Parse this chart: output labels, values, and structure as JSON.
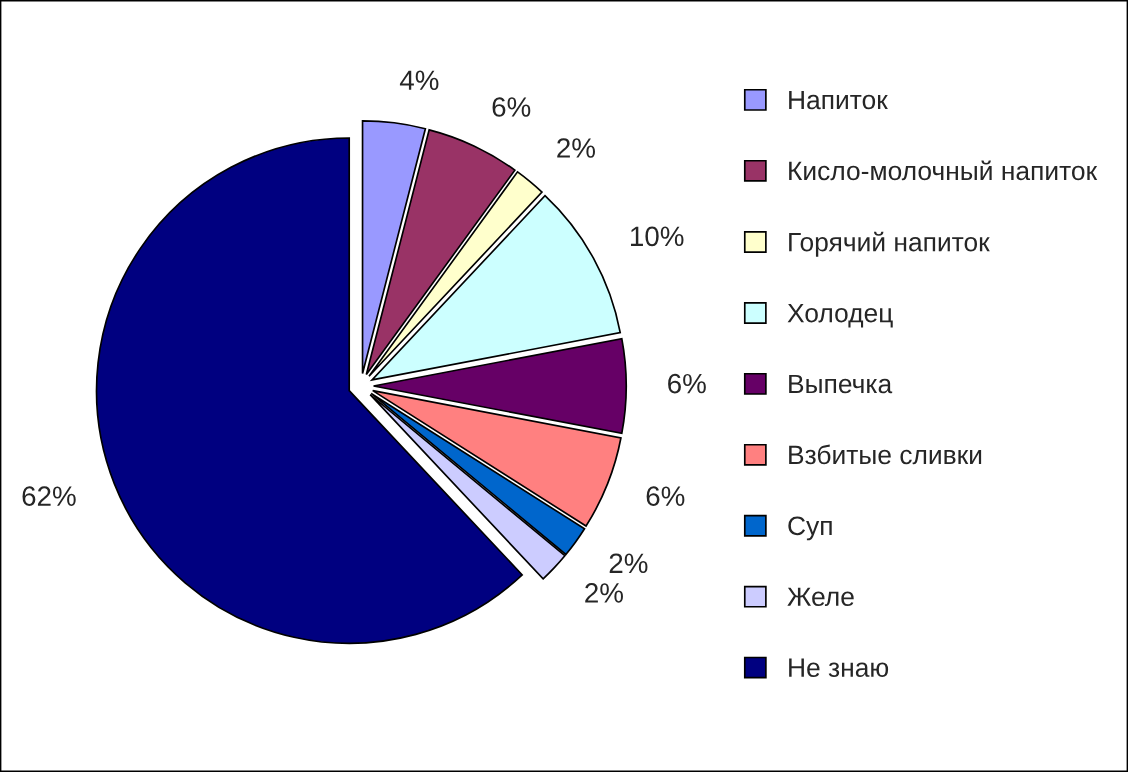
{
  "chart_data": {
    "type": "pie",
    "categories": [
      "Напиток",
      "Кисло-молочный напиток",
      "Горячий напиток",
      "Холодец",
      "Выпечка",
      "Взбитые сливки",
      "Суп",
      "Желе",
      "Не знаю"
    ],
    "values": [
      4,
      6,
      2,
      10,
      6,
      6,
      2,
      2,
      62
    ],
    "value_labels": [
      "4%",
      "6%",
      "2%",
      "10%",
      "6%",
      "6%",
      "2%",
      "2%",
      "62%"
    ],
    "colors": [
      "#9999ff",
      "#993366",
      "#ffffcc",
      "#ccffff",
      "#660066",
      "#ff8080",
      "#0066cc",
      "#ccccff",
      "#000080"
    ],
    "legend": "right"
  }
}
